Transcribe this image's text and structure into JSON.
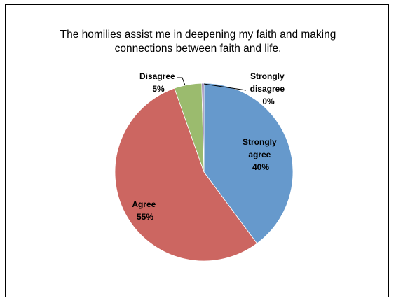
{
  "chart_data": {
    "type": "pie",
    "title_lines": [
      "The homilies assist me in deepening my faith and making",
      "connections between faith and life."
    ],
    "slices": [
      {
        "label": "Strongly agree",
        "value": 40,
        "pct_text": "40%",
        "color": "#6699cc"
      },
      {
        "label": "Agree",
        "value": 55,
        "pct_text": "55%",
        "color": "#cc6661"
      },
      {
        "label": "Disagree",
        "value": 5,
        "pct_text": "5%",
        "color": "#9bbb6e"
      },
      {
        "label": "Strongly disagree",
        "value": 0.4,
        "pct_text": "0%",
        "color": "#8066a0"
      }
    ]
  }
}
